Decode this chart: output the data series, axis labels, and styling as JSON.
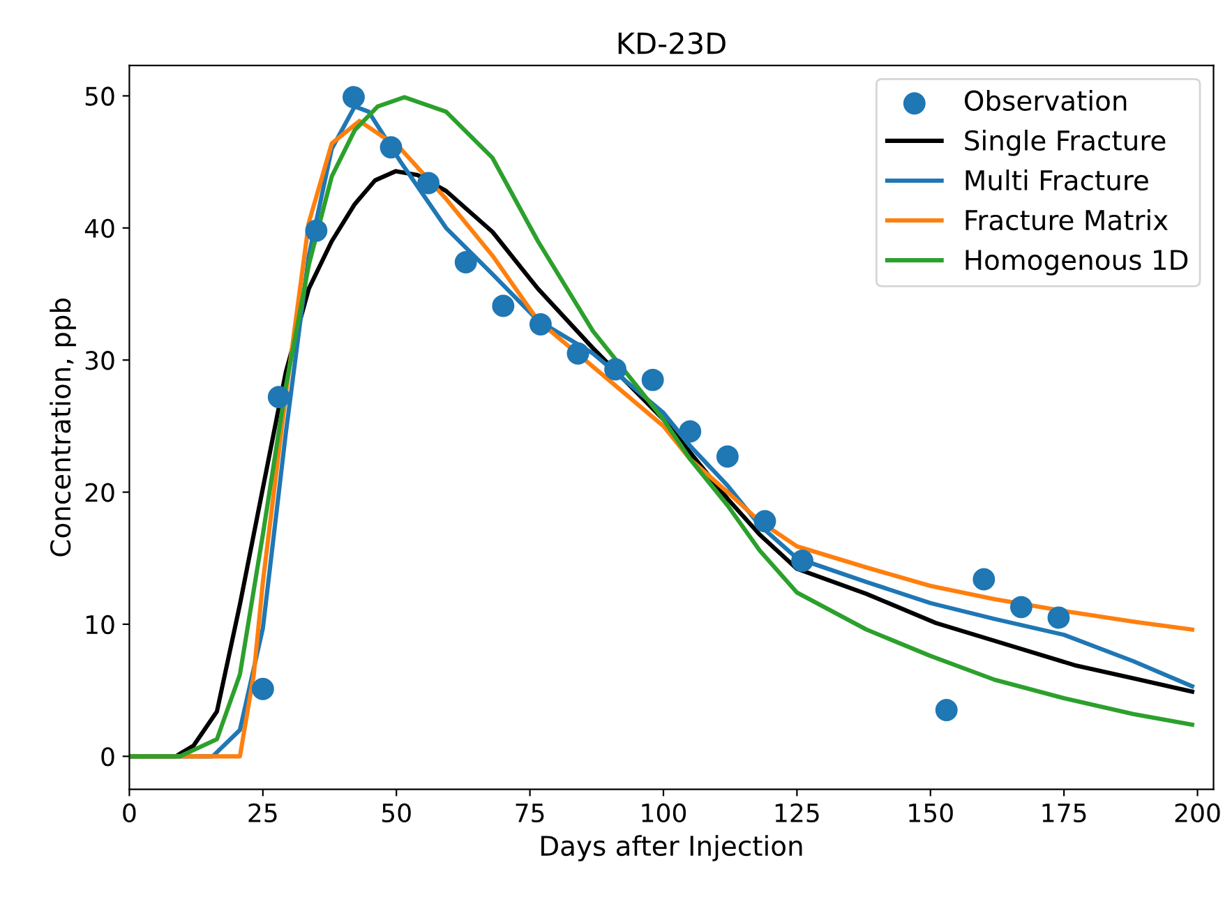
{
  "chart_data": {
    "type": "line",
    "title": "KD-23D",
    "xlabel": "Days after Injection",
    "ylabel": "Concentration, ppb",
    "xlim": [
      0,
      203
    ],
    "ylim": [
      -2.5,
      52.3
    ],
    "xticks": [
      0,
      25,
      50,
      75,
      100,
      125,
      150,
      175,
      200
    ],
    "yticks": [
      0,
      10,
      20,
      30,
      40,
      50
    ],
    "grid": false,
    "legend": "top right",
    "series": [
      {
        "name": "Observation",
        "type": "scatter",
        "marker": "circle",
        "color": "#1f77b4",
        "x": [
          25,
          28,
          35,
          42,
          49,
          56,
          63,
          70,
          77,
          84,
          91,
          98,
          105,
          112,
          119,
          126,
          153,
          160,
          167,
          174
        ],
        "values": [
          5.1,
          27.2,
          39.8,
          49.9,
          46.1,
          43.4,
          37.4,
          34.1,
          32.7,
          30.5,
          29.3,
          28.5,
          24.6,
          22.7,
          17.8,
          14.8,
          3.5,
          13.4,
          11.3,
          10.5
        ]
      },
      {
        "name": "Single Fracture",
        "color": "#000000",
        "x": [
          0,
          8.7,
          12,
          16.4,
          20.7,
          25,
          29.3,
          33.6,
          37.9,
          42.2,
          46,
          49.9,
          54,
          59.3,
          68,
          76.5,
          86.8,
          100,
          105,
          112,
          118,
          125,
          138,
          151,
          164,
          177,
          188,
          199
        ],
        "values": [
          0,
          0,
          0.8,
          3.4,
          11.5,
          20.3,
          29.1,
          35.4,
          39,
          41.8,
          43.6,
          44.3,
          44,
          42.8,
          39.7,
          35.4,
          30.9,
          25.5,
          23,
          19.5,
          16.8,
          14.2,
          12.3,
          10.1,
          8.5,
          6.9,
          5.9,
          4.9
        ]
      },
      {
        "name": "Multi Fracture",
        "color": "#1f77b4",
        "x": [
          0,
          15.6,
          20.7,
          25,
          29.3,
          33.6,
          37.9,
          42.2,
          44.8,
          50.8,
          59.3,
          68,
          76.5,
          86.8,
          100,
          105,
          112,
          118,
          125,
          138,
          150,
          162,
          175,
          188,
          199
        ],
        "values": [
          0,
          0,
          2,
          9.7,
          24.5,
          37.9,
          46,
          49.2,
          48.8,
          45,
          40,
          36.5,
          33,
          30.5,
          26,
          23.5,
          20.5,
          17.5,
          15,
          13.2,
          11.6,
          10.4,
          9.2,
          7.2,
          5.3
        ]
      },
      {
        "name": "Fracture Matrix",
        "color": "#ff7f0e",
        "x": [
          0,
          20.7,
          23.3,
          25,
          29.3,
          33.6,
          37.9,
          43.1,
          50.8,
          59.3,
          68,
          76.5,
          86.8,
          100,
          105,
          112,
          118,
          125,
          138,
          150,
          162,
          175,
          188,
          199
        ],
        "values": [
          0,
          0,
          6.2,
          13.2,
          27.4,
          40.4,
          46.4,
          48.1,
          46,
          42.2,
          37.9,
          33,
          29.5,
          25,
          22.5,
          20,
          17.8,
          15.9,
          14.3,
          12.9,
          11.9,
          11,
          10.2,
          9.6
        ]
      },
      {
        "name": "Homogenous 1D",
        "color": "#2ca02c",
        "x": [
          0,
          9.5,
          16.4,
          20.7,
          25,
          29.3,
          33.6,
          37.9,
          42.2,
          46.5,
          51.5,
          59.3,
          68,
          76.5,
          86.8,
          100,
          105,
          112,
          118,
          125,
          138,
          150,
          162,
          175,
          188,
          199
        ],
        "values": [
          0,
          0,
          1.3,
          6.2,
          16.8,
          28,
          37.2,
          43.9,
          47.4,
          49.2,
          49.9,
          48.8,
          45.3,
          39,
          32.2,
          25.5,
          22.5,
          19,
          15.6,
          12.4,
          9.6,
          7.6,
          5.8,
          4.4,
          3.2,
          2.4
        ]
      }
    ]
  }
}
